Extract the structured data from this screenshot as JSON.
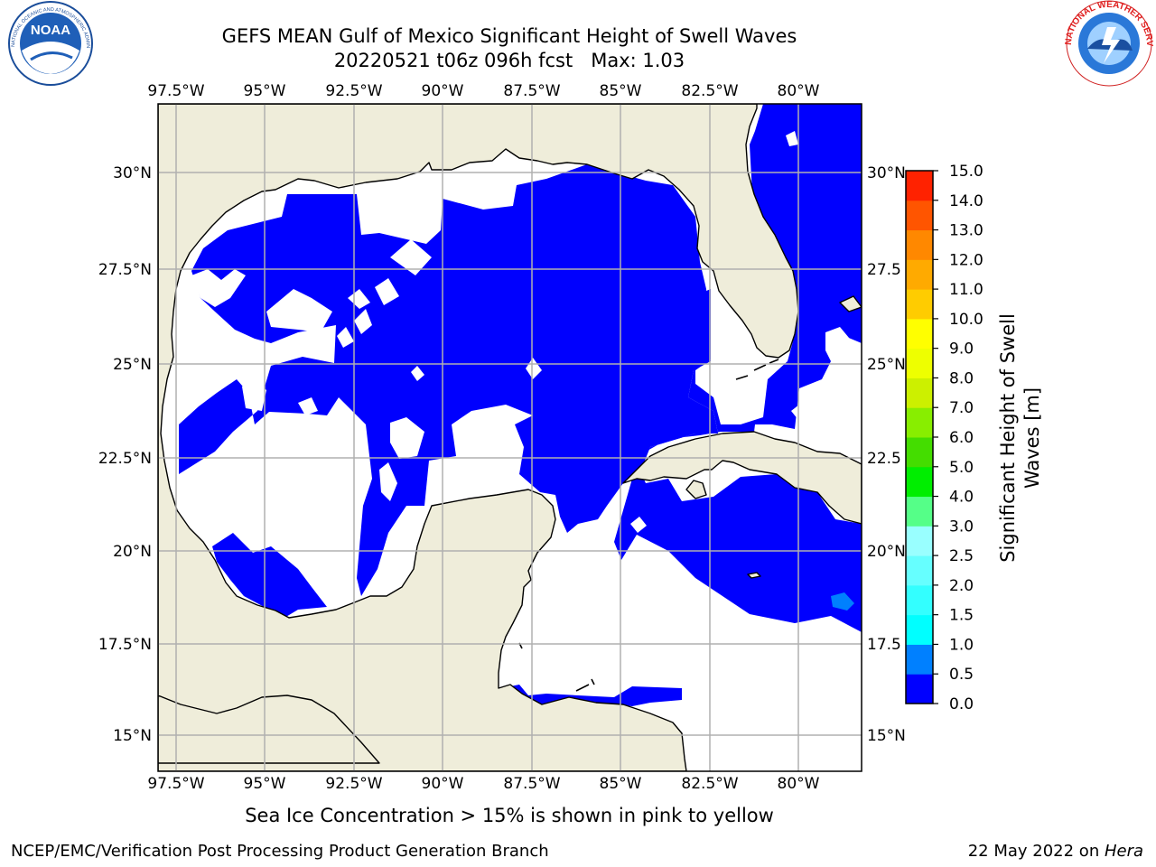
{
  "header": {
    "title_line1": "GEFS MEAN Gulf of Mexico Significant Height of Swell Waves",
    "title_line2": "20220521 t06z 096h fcst   Max: 1.03"
  },
  "logos": {
    "left": {
      "name": "noaa-logo",
      "text": "NOAA",
      "ring_text": "NATIONAL OCEANIC AND ATMOSPHERIC ADMINISTRATION · U.S. DEPARTMENT OF COMMERCE"
    },
    "right": {
      "name": "nws-logo",
      "ring_text": "NATIONAL WEATHER SERVICE"
    }
  },
  "map": {
    "lon_ticks": [
      "97.5°W",
      "95°W",
      "92.5°W",
      "90°W",
      "87.5°W",
      "85°W",
      "82.5°W",
      "80°W"
    ],
    "lat_ticks_left": [
      "30°N",
      "27.5°N",
      "25°N",
      "22.5°N",
      "20°N",
      "17.5°N",
      "15°N"
    ],
    "lat_ticks_right": [
      "30°N",
      "27.5",
      "25°N",
      "22.5",
      "20°N",
      "17.5",
      "15°N"
    ],
    "colors": {
      "land": "#efedda",
      "ocean_0_0.5": "#0000fe",
      "ocean_0.5_1.0": "#0080fe",
      "ocean_1.0_1.5": "#00ffff",
      "grid": "#b0b0b0",
      "coast": "#000000"
    }
  },
  "colorbar": {
    "label_line1": "Significant Height of Swell",
    "label_line2": "Waves [m]",
    "ticks": [
      "0.0",
      "0.5",
      "1.0",
      "1.5",
      "2.0",
      "2.5",
      "3.0",
      "4.0",
      "5.0",
      "6.0",
      "7.0",
      "8.0",
      "9.0",
      "10.0",
      "11.0",
      "12.0",
      "13.0",
      "14.0",
      "15.0"
    ],
    "colors": [
      "#0000ff",
      "#0080ff",
      "#00ffff",
      "#33ffff",
      "#66ffff",
      "#99ffff",
      "#55ff88",
      "#00ee00",
      "#44dd00",
      "#88ee00",
      "#ccf000",
      "#eeff00",
      "#ffff00",
      "#ffcc00",
      "#ffaa00",
      "#ff8800",
      "#ff5500",
      "#ff2200"
    ]
  },
  "notes": {
    "ice": "Sea Ice Concentration > 15% is shown in pink to yellow"
  },
  "footer": {
    "left": "NCEP/EMC/Verification Post Processing Product Generation Branch",
    "right_prefix": "22 May 2022 on ",
    "right_host": "Hera"
  }
}
